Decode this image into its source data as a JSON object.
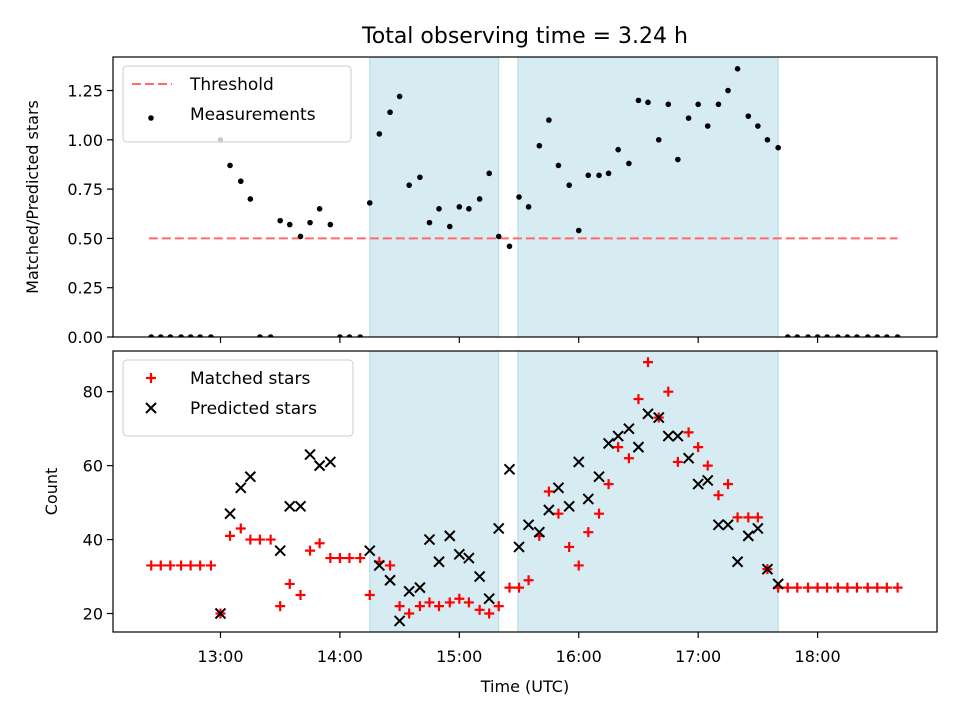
{
  "chart_data": {
    "title": "Total observing time = 3.24 h",
    "xlabel": "Time (UTC)",
    "x_ticks": [
      "13:00",
      "14:00",
      "15:00",
      "16:00",
      "17:00",
      "18:00"
    ],
    "x_tick_hours": [
      13,
      14,
      15,
      16,
      17,
      18
    ],
    "xlim": [
      12.1,
      19.0
    ],
    "shaded_intervals": [
      [
        14.25,
        15.33
      ],
      [
        15.49,
        17.67
      ]
    ],
    "shade_color": "#add8e6",
    "panels": [
      {
        "type": "scatter",
        "ylabel": "Matched/Predicted stars",
        "ylim": [
          0,
          1.42
        ],
        "y_ticks": [
          "0.00",
          "0.25",
          "0.50",
          "0.75",
          "1.00",
          "1.25"
        ],
        "y_tick_values": [
          0,
          0.25,
          0.5,
          0.75,
          1.0,
          1.25
        ],
        "threshold": {
          "name": "Threshold",
          "value": 0.5,
          "x_range": [
            12.4,
            18.67
          ],
          "color": "#ff6b6b"
        },
        "series": [
          {
            "name": "Measurements",
            "marker": "dot",
            "color": "#000000",
            "points": [
              [
                12.42,
                0
              ],
              [
                12.5,
                0
              ],
              [
                12.58,
                0
              ],
              [
                12.67,
                0
              ],
              [
                12.75,
                0
              ],
              [
                12.83,
                0
              ],
              [
                12.92,
                0
              ],
              [
                13.0,
                1.0
              ],
              [
                13.08,
                0.87
              ],
              [
                13.17,
                0.79
              ],
              [
                13.25,
                0.7
              ],
              [
                13.33,
                0
              ],
              [
                13.42,
                0
              ],
              [
                13.5,
                0.59
              ],
              [
                13.58,
                0.57
              ],
              [
                13.67,
                0.51
              ],
              [
                13.75,
                0.58
              ],
              [
                13.83,
                0.65
              ],
              [
                13.92,
                0.57
              ],
              [
                14.0,
                0
              ],
              [
                14.08,
                0
              ],
              [
                14.17,
                0
              ],
              [
                14.25,
                0.68
              ],
              [
                14.33,
                1.03
              ],
              [
                14.42,
                1.14
              ],
              [
                14.5,
                1.22
              ],
              [
                14.58,
                0.77
              ],
              [
                14.67,
                0.81
              ],
              [
                14.75,
                0.58
              ],
              [
                14.83,
                0.65
              ],
              [
                14.92,
                0.56
              ],
              [
                15.0,
                0.66
              ],
              [
                15.08,
                0.65
              ],
              [
                15.17,
                0.7
              ],
              [
                15.25,
                0.83
              ],
              [
                15.33,
                0.51
              ],
              [
                15.42,
                0.46
              ],
              [
                15.5,
                0.71
              ],
              [
                15.58,
                0.66
              ],
              [
                15.67,
                0.97
              ],
              [
                15.75,
                1.1
              ],
              [
                15.83,
                0.87
              ],
              [
                15.92,
                0.77
              ],
              [
                16.0,
                0.54
              ],
              [
                16.08,
                0.82
              ],
              [
                16.17,
                0.82
              ],
              [
                16.25,
                0.83
              ],
              [
                16.33,
                0.95
              ],
              [
                16.42,
                0.88
              ],
              [
                16.5,
                1.2
              ],
              [
                16.58,
                1.19
              ],
              [
                16.67,
                1.0
              ],
              [
                16.75,
                1.18
              ],
              [
                16.83,
                0.9
              ],
              [
                16.92,
                1.11
              ],
              [
                17.0,
                1.18
              ],
              [
                17.08,
                1.07
              ],
              [
                17.17,
                1.18
              ],
              [
                17.25,
                1.25
              ],
              [
                17.33,
                1.36
              ],
              [
                17.42,
                1.12
              ],
              [
                17.5,
                1.07
              ],
              [
                17.58,
                1.0
              ],
              [
                17.67,
                0.96
              ],
              [
                17.75,
                0
              ],
              [
                17.83,
                0
              ],
              [
                17.92,
                0
              ],
              [
                18.0,
                0
              ],
              [
                18.08,
                0
              ],
              [
                18.17,
                0
              ],
              [
                18.25,
                0
              ],
              [
                18.33,
                0
              ],
              [
                18.42,
                0
              ],
              [
                18.5,
                0
              ],
              [
                18.58,
                0
              ],
              [
                18.67,
                0
              ]
            ]
          }
        ]
      },
      {
        "type": "scatter",
        "ylabel": "Count",
        "ylim": [
          15,
          91
        ],
        "y_ticks": [
          "20",
          "40",
          "60",
          "80"
        ],
        "y_tick_values": [
          20,
          40,
          60,
          80
        ],
        "series": [
          {
            "name": "Matched stars",
            "marker": "plus",
            "color": "#ff0000",
            "points": [
              [
                12.42,
                33
              ],
              [
                12.5,
                33
              ],
              [
                12.58,
                33
              ],
              [
                12.67,
                33
              ],
              [
                12.75,
                33
              ],
              [
                12.83,
                33
              ],
              [
                12.92,
                33
              ],
              [
                13.0,
                20
              ],
              [
                13.08,
                41
              ],
              [
                13.17,
                43
              ],
              [
                13.25,
                40
              ],
              [
                13.33,
                40
              ],
              [
                13.42,
                40
              ],
              [
                13.5,
                22
              ],
              [
                13.58,
                28
              ],
              [
                13.67,
                25
              ],
              [
                13.75,
                37
              ],
              [
                13.83,
                39
              ],
              [
                13.92,
                35
              ],
              [
                14.0,
                35
              ],
              [
                14.08,
                35
              ],
              [
                14.17,
                35
              ],
              [
                14.25,
                25
              ],
              [
                14.33,
                34
              ],
              [
                14.42,
                33
              ],
              [
                14.5,
                22
              ],
              [
                14.58,
                20
              ],
              [
                14.67,
                22
              ],
              [
                14.75,
                23
              ],
              [
                14.83,
                22
              ],
              [
                14.92,
                23
              ],
              [
                15.0,
                24
              ],
              [
                15.08,
                23
              ],
              [
                15.17,
                21
              ],
              [
                15.25,
                20
              ],
              [
                15.33,
                22
              ],
              [
                15.42,
                27
              ],
              [
                15.5,
                27
              ],
              [
                15.58,
                29
              ],
              [
                15.67,
                41
              ],
              [
                15.75,
                53
              ],
              [
                15.83,
                47
              ],
              [
                15.92,
                38
              ],
              [
                16.0,
                33
              ],
              [
                16.08,
                42
              ],
              [
                16.17,
                47
              ],
              [
                16.25,
                55
              ],
              [
                16.33,
                65
              ],
              [
                16.42,
                62
              ],
              [
                16.5,
                78
              ],
              [
                16.58,
                88
              ],
              [
                16.67,
                73
              ],
              [
                16.75,
                80
              ],
              [
                16.83,
                61
              ],
              [
                16.92,
                69
              ],
              [
                17.0,
                65
              ],
              [
                17.08,
                60
              ],
              [
                17.17,
                52
              ],
              [
                17.25,
                55
              ],
              [
                17.33,
                46
              ],
              [
                17.42,
                46
              ],
              [
                17.5,
                46
              ],
              [
                17.58,
                32
              ],
              [
                17.67,
                27
              ],
              [
                17.75,
                27
              ],
              [
                17.83,
                27
              ],
              [
                17.92,
                27
              ],
              [
                18.0,
                27
              ],
              [
                18.08,
                27
              ],
              [
                18.17,
                27
              ],
              [
                18.25,
                27
              ],
              [
                18.33,
                27
              ],
              [
                18.42,
                27
              ],
              [
                18.5,
                27
              ],
              [
                18.58,
                27
              ],
              [
                18.67,
                27
              ]
            ]
          },
          {
            "name": "Predicted stars",
            "marker": "x",
            "color": "#000000",
            "points": [
              [
                13.0,
                20
              ],
              [
                13.08,
                47
              ],
              [
                13.17,
                54
              ],
              [
                13.25,
                57
              ],
              [
                13.5,
                37
              ],
              [
                13.58,
                49
              ],
              [
                13.67,
                49
              ],
              [
                13.75,
                63
              ],
              [
                13.83,
                60
              ],
              [
                13.92,
                61
              ],
              [
                14.25,
                37
              ],
              [
                14.33,
                33
              ],
              [
                14.42,
                29
              ],
              [
                14.5,
                18
              ],
              [
                14.58,
                26
              ],
              [
                14.67,
                27
              ],
              [
                14.75,
                40
              ],
              [
                14.83,
                34
              ],
              [
                14.92,
                41
              ],
              [
                15.0,
                36
              ],
              [
                15.08,
                35
              ],
              [
                15.17,
                30
              ],
              [
                15.25,
                24
              ],
              [
                15.33,
                43
              ],
              [
                15.42,
                59
              ],
              [
                15.5,
                38
              ],
              [
                15.58,
                44
              ],
              [
                15.67,
                42
              ],
              [
                15.75,
                48
              ],
              [
                15.83,
                54
              ],
              [
                15.92,
                49
              ],
              [
                16.0,
                61
              ],
              [
                16.08,
                51
              ],
              [
                16.17,
                57
              ],
              [
                16.25,
                66
              ],
              [
                16.33,
                68
              ],
              [
                16.42,
                70
              ],
              [
                16.5,
                65
              ],
              [
                16.58,
                74
              ],
              [
                16.67,
                73
              ],
              [
                16.75,
                68
              ],
              [
                16.83,
                68
              ],
              [
                16.92,
                62
              ],
              [
                17.0,
                55
              ],
              [
                17.08,
                56
              ],
              [
                17.17,
                44
              ],
              [
                17.25,
                44
              ],
              [
                17.33,
                34
              ],
              [
                17.42,
                41
              ],
              [
                17.5,
                43
              ],
              [
                17.58,
                32
              ],
              [
                17.67,
                28
              ]
            ]
          }
        ]
      }
    ]
  }
}
